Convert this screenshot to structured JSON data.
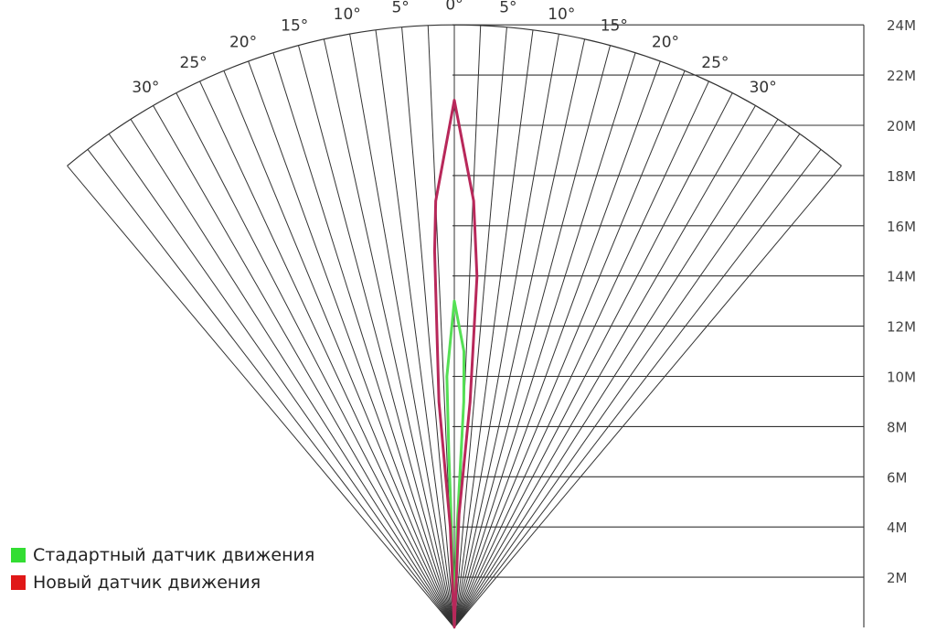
{
  "chart_data": {
    "type": "polar-line",
    "angle_unit": "degrees",
    "angle_ticks": [
      -30,
      -25,
      -20,
      -15,
      -10,
      -5,
      0,
      5,
      10,
      15,
      20,
      25,
      30
    ],
    "angle_tick_labels": [
      "30°",
      "25°",
      "20°",
      "15°",
      "10°",
      "5°",
      "0°",
      "5°",
      "10°",
      "15°",
      "20°",
      "25°",
      "30°"
    ],
    "distance_ticks": [
      2,
      4,
      6,
      8,
      10,
      12,
      14,
      16,
      18,
      20,
      22,
      24
    ],
    "distance_tick_labels": [
      "2M",
      "4M",
      "6M",
      "8M",
      "10M",
      "12M",
      "14M",
      "16M",
      "18M",
      "20M",
      "22M",
      "24M"
    ],
    "distance_range": [
      0,
      24
    ],
    "angle_range": [
      -40,
      40
    ],
    "series": [
      {
        "name": "Стадартный датчик движения",
        "color": "#55e055",
        "points": [
          {
            "x": 0,
            "y": 0
          },
          {
            "x": -1.6,
            "y": 4
          },
          {
            "x": -1.8,
            "y": 7
          },
          {
            "x": -1.7,
            "y": 10
          },
          {
            "x": 0,
            "y": 13
          },
          {
            "x": 2.0,
            "y": 11
          },
          {
            "x": 2.4,
            "y": 9
          },
          {
            "x": 1.6,
            "y": 4
          },
          {
            "x": 0,
            "y": 0
          }
        ]
      },
      {
        "name": "Новый датчик движения",
        "color": "#b8285a",
        "points": [
          {
            "x": 0,
            "y": 0
          },
          {
            "x": -2.3,
            "y": 4
          },
          {
            "x": -3.9,
            "y": 9
          },
          {
            "x": -3.0,
            "y": 15
          },
          {
            "x": -2.5,
            "y": 17
          },
          {
            "x": 0,
            "y": 21
          },
          {
            "x": 2.6,
            "y": 17
          },
          {
            "x": 3.7,
            "y": 14
          },
          {
            "x": 4.0,
            "y": 9
          },
          {
            "x": 2.4,
            "y": 4.5
          },
          {
            "x": 0,
            "y": 0
          }
        ]
      }
    ],
    "legend": [
      {
        "label": "Стадартный датчик движения",
        "color": "#33dd33"
      },
      {
        "label": "Новый датчик движения",
        "color": "#e01818"
      }
    ]
  }
}
